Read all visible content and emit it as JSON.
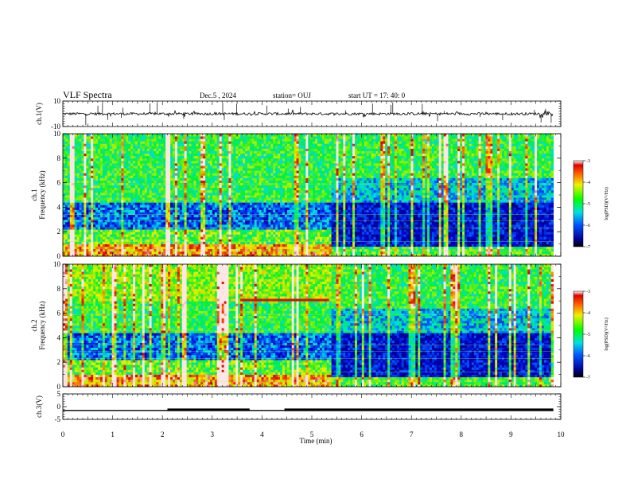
{
  "header": {
    "title": "VLF Spectra",
    "date": "Dec.5 , 2024",
    "station": "station= OUJ",
    "start_time": "start  UT =   17: 40: 0"
  },
  "colors": {
    "spectrogram_low": "#000080",
    "spectrogram_mid": "#00ff00",
    "spectrogram_high": "#ff0000",
    "trace": "#000000"
  },
  "chart_data": [
    {
      "type": "line",
      "panel": "ch1-waveform",
      "ylabel": "ch.1(V)",
      "ylim": [
        -10,
        10
      ],
      "yticks": [
        "10",
        "-10"
      ],
      "xlim": [
        0,
        10
      ],
      "baseline": 0,
      "note_amplitude": 1
    },
    {
      "type": "heatmap",
      "panel": "ch1-spectrogram",
      "ylabel": "ch.1\nFrequency (kHz)",
      "ylabel_line1": "ch.1",
      "ylabel_line2": "Frequency (kHz)",
      "ylim": [
        0,
        10
      ],
      "yticks": [
        "0",
        "2",
        "4",
        "6",
        "8",
        "10"
      ],
      "xlim": [
        0,
        10
      ],
      "colorbar": {
        "label": "log(PSD)(V²/Hz)",
        "ticks": [
          "-3",
          "-4",
          "-5",
          "-6",
          "-7"
        ],
        "range": [
          -7,
          -3
        ]
      },
      "regime_change_min": 5.4
    },
    {
      "type": "heatmap",
      "panel": "ch2-spectrogram",
      "ylabel_line1": "ch.2",
      "ylabel_line2": "Frequency (kHz)",
      "ylim": [
        0,
        10
      ],
      "yticks": [
        "0",
        "2",
        "4",
        "6",
        "8",
        "10"
      ],
      "xlim": [
        0,
        10
      ],
      "colorbar": {
        "label": "log(PSD)(V²/Hz)",
        "ticks": [
          "-3",
          "-4",
          "-5",
          "-6",
          "-7"
        ],
        "range": [
          -7,
          -3
        ]
      },
      "regime_change_min": 5.4,
      "tone_khz": 7.1,
      "tone_range_min": [
        3.55,
        5.35
      ]
    },
    {
      "type": "line",
      "panel": "ch3-level",
      "ylabel": "ch.3(V)",
      "ylim": [
        -5,
        5
      ],
      "yticks": [
        "5",
        "0",
        "-5"
      ],
      "xlim": [
        0,
        10
      ],
      "level": -1.5,
      "thick_segments_min": [
        [
          2.1,
          3.75
        ],
        [
          4.45,
          9.85
        ]
      ],
      "data_end_min": 9.85
    }
  ],
  "x_axis": {
    "label": "Time (min)",
    "ticks": [
      "0",
      "1",
      "2",
      "3",
      "4",
      "5",
      "6",
      "7",
      "8",
      "9",
      "10"
    ]
  }
}
